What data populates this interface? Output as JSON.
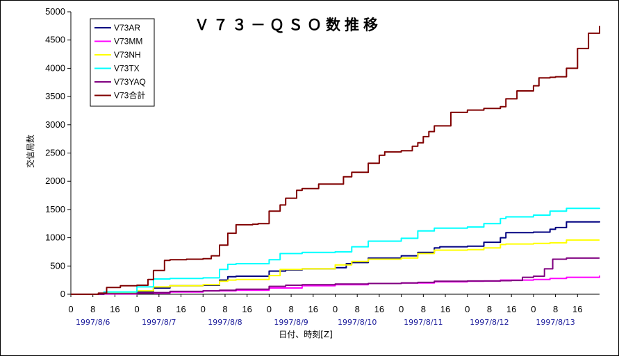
{
  "chart_data": {
    "type": "line",
    "title": "Ｖ７３－ＱＳＯ数推移",
    "xlabel": "日付、時刻[Z]",
    "ylabel": "交信局数",
    "ylim": [
      0,
      5000
    ],
    "y_ticks": [
      "0",
      "500",
      "1000",
      "1500",
      "2000",
      "2500",
      "3000",
      "3500",
      "4000",
      "4500",
      "5000"
    ],
    "xlim": [
      0,
      192
    ],
    "x_unit": "hours since 1997/8/6 00Z",
    "x_tick_labels": [
      "0",
      "8",
      "16",
      "0",
      "8",
      "16",
      "0",
      "8",
      "16",
      "0",
      "8",
      "16",
      "0",
      "8",
      "16",
      "0",
      "8",
      "16",
      "0",
      "8",
      "16",
      "0",
      "8",
      "16"
    ],
    "dates": [
      "1997/8/6",
      "1997/8/7",
      "1997/8/8",
      "1997/8/9",
      "1997/8/10",
      "1997/8/11",
      "1997/8/12",
      "1997/8/13"
    ],
    "legend_position": "top-left",
    "series": [
      {
        "name": "V73AR",
        "color": "#000080",
        "x": [
          0,
          12,
          15,
          24,
          30,
          36,
          48,
          54,
          57,
          60,
          72,
          78,
          84,
          96,
          100,
          102,
          108,
          120,
          126,
          132,
          134,
          144,
          150,
          156,
          158,
          168,
          174,
          176,
          180,
          192
        ],
        "values": [
          0,
          10,
          25,
          40,
          110,
          150,
          160,
          250,
          310,
          320,
          410,
          430,
          450,
          470,
          540,
          560,
          640,
          680,
          740,
          820,
          840,
          850,
          920,
          1000,
          1090,
          1100,
          1150,
          1180,
          1280,
          1290
        ]
      },
      {
        "name": "V73MM",
        "color": "#ff00ff",
        "x": [
          0,
          12,
          24,
          36,
          48,
          60,
          72,
          84,
          96,
          108,
          120,
          132,
          144,
          150,
          156,
          168,
          174,
          180,
          192
        ],
        "values": [
          0,
          5,
          20,
          40,
          60,
          70,
          110,
          150,
          170,
          190,
          200,
          220,
          230,
          235,
          250,
          260,
          280,
          300,
          330
        ]
      },
      {
        "name": "V73NH",
        "color": "#ffff00",
        "x": [
          0,
          12,
          24,
          30,
          36,
          48,
          54,
          57,
          60,
          72,
          76,
          80,
          84,
          96,
          102,
          108,
          120,
          126,
          132,
          144,
          150,
          156,
          158,
          168,
          174,
          180,
          192
        ],
        "values": [
          0,
          20,
          60,
          130,
          150,
          170,
          230,
          250,
          260,
          330,
          440,
          440,
          450,
          520,
          580,
          620,
          640,
          720,
          780,
          790,
          820,
          880,
          890,
          900,
          910,
          960,
          960
        ]
      },
      {
        "name": "V73TX",
        "color": "#00ffff",
        "x": [
          0,
          12,
          24,
          30,
          36,
          48,
          54,
          57,
          60,
          72,
          76,
          78,
          84,
          96,
          102,
          108,
          120,
          126,
          132,
          144,
          150,
          156,
          158,
          168,
          174,
          176,
          180,
          192
        ],
        "values": [
          0,
          40,
          130,
          270,
          280,
          290,
          440,
          530,
          540,
          610,
          720,
          720,
          740,
          750,
          840,
          940,
          990,
          1120,
          1170,
          1190,
          1250,
          1340,
          1370,
          1400,
          1470,
          1470,
          1520,
          1530
        ]
      },
      {
        "name": "V73YAQ",
        "color": "#800080",
        "x": [
          0,
          12,
          24,
          30,
          36,
          48,
          54,
          60,
          72,
          78,
          84,
          96,
          108,
          120,
          126,
          132,
          144,
          156,
          160,
          164,
          168,
          172,
          175,
          180,
          192
        ],
        "values": [
          0,
          10,
          20,
          30,
          50,
          60,
          70,
          90,
          140,
          160,
          170,
          180,
          190,
          200,
          210,
          230,
          235,
          240,
          245,
          300,
          320,
          450,
          620,
          640,
          640
        ]
      },
      {
        "name": "V73合計",
        "color": "#800000",
        "x": [
          0,
          10,
          13,
          18,
          24,
          28,
          30,
          34,
          36,
          42,
          48,
          51,
          54,
          57,
          60,
          66,
          68,
          72,
          76,
          78,
          82,
          84,
          90,
          96,
          99,
          102,
          108,
          112,
          114,
          120,
          124,
          126,
          128,
          130,
          132,
          138,
          144,
          150,
          156,
          158,
          162,
          168,
          170,
          174,
          176,
          180,
          184,
          188,
          192
        ],
        "values": [
          0,
          20,
          120,
          150,
          160,
          260,
          420,
          600,
          610,
          620,
          630,
          680,
          870,
          1080,
          1230,
          1240,
          1250,
          1470,
          1580,
          1700,
          1840,
          1870,
          1950,
          1950,
          2080,
          2160,
          2320,
          2460,
          2520,
          2540,
          2620,
          2680,
          2790,
          2880,
          2980,
          3220,
          3260,
          3290,
          3320,
          3460,
          3600,
          3690,
          3830,
          3840,
          3850,
          4000,
          4350,
          4620,
          4750
        ]
      }
    ]
  }
}
